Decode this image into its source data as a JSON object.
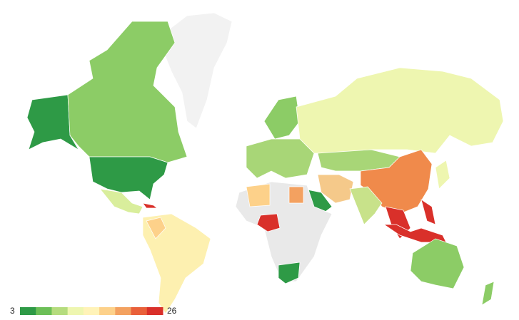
{
  "chart_data": {
    "type": "map",
    "legend": {
      "min": 3,
      "max": 26,
      "colors": [
        "#2e9a46",
        "#6cbf57",
        "#b5dc7e",
        "#eef6b0",
        "#fff3b8",
        "#fdd18a",
        "#f3a160",
        "#e9603a",
        "#d9302a"
      ]
    }
  }
}
